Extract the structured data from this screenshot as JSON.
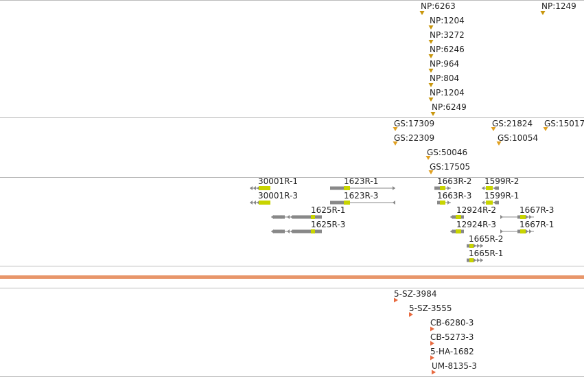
{
  "colors": {
    "np_marker": "#c8960c",
    "gs_marker": "#e0a020",
    "gene_body": "#888888",
    "exon_highlight": "#c8d400",
    "divider_band": "#e8966a",
    "feature_marker": "#e86a40",
    "track_line": "#bbbbbb"
  },
  "np_track": {
    "features": [
      {
        "label": "NP:6263"
      },
      {
        "label": "NP:1249"
      },
      {
        "label": "NP:1204"
      },
      {
        "label": "NP:3272"
      },
      {
        "label": "NP:6246"
      },
      {
        "label": "NP:964"
      },
      {
        "label": "NP:804"
      },
      {
        "label": "NP:1204"
      },
      {
        "label": "NP:6249"
      }
    ]
  },
  "gs_track": {
    "features": [
      {
        "label": "GS:17309"
      },
      {
        "label": "GS:21824"
      },
      {
        "label": "GS:15017"
      },
      {
        "label": "GS:22309"
      },
      {
        "label": "GS:10054"
      },
      {
        "label": "GS:50046"
      },
      {
        "label": "GS:17505"
      }
    ]
  },
  "gene_track": {
    "genes": [
      {
        "label": "30001R-1"
      },
      {
        "label": "1623R-1"
      },
      {
        "label": "1663R-2"
      },
      {
        "label": "1599R-2"
      },
      {
        "label": "30001R-3"
      },
      {
        "label": "1623R-3"
      },
      {
        "label": "1663R-3"
      },
      {
        "label": "1599R-1"
      },
      {
        "label": "1625R-1"
      },
      {
        "label": "12924R-2"
      },
      {
        "label": "1667R-3"
      },
      {
        "label": "1625R-3"
      },
      {
        "label": "12924R-3"
      },
      {
        "label": "1667R-1"
      },
      {
        "label": "1665R-2"
      },
      {
        "label": "1665R-1"
      }
    ]
  },
  "feature_track": {
    "features": [
      {
        "label": "5-SZ-3984"
      },
      {
        "label": "5-SZ-3555"
      },
      {
        "label": "CB-6280-3"
      },
      {
        "label": "CB-5273-3"
      },
      {
        "label": "5-HA-1682"
      },
      {
        "label": "UM-8135-3"
      }
    ]
  }
}
